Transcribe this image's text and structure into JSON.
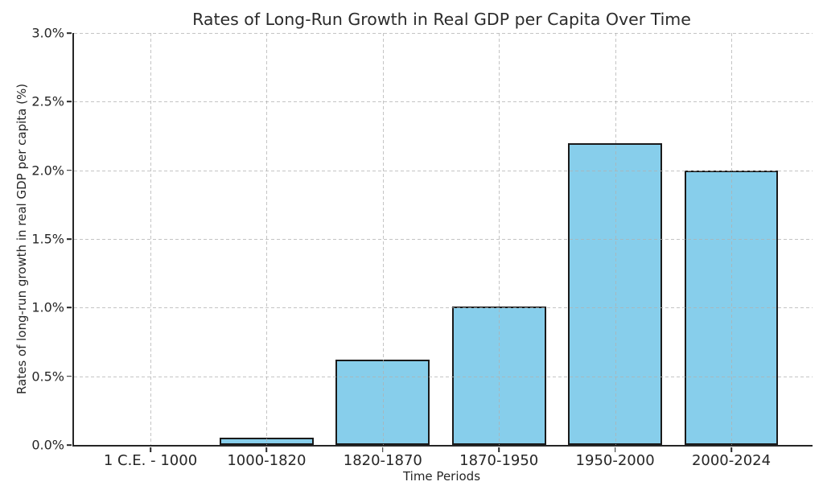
{
  "chart_data": {
    "type": "bar",
    "title": "Rates of Long-Run Growth in Real GDP per Capita Over Time",
    "xlabel": "Time Periods",
    "ylabel": "Rates of long-run growth in real GDP per capita (%)",
    "categories": [
      "1 C.E. - 1000",
      "1000-1820",
      "1820-1870",
      "1870-1950",
      "1950-2000",
      "2000-2024"
    ],
    "values": [
      0.0,
      0.05,
      0.62,
      1.01,
      2.2,
      2.0
    ],
    "ylim": [
      0.0,
      3.0
    ],
    "ytick_step": 0.5,
    "ytick_labels": [
      "0.0%",
      "0.5%",
      "1.0%",
      "1.5%",
      "2.0%",
      "2.5%",
      "3.0%"
    ],
    "legend": "none",
    "grid": "dashed gridlines on both axes, drawn above bars",
    "colors": {
      "bar_fill": "#87CEEB",
      "bar_edge": "#1a1a1a",
      "axis_spine": "#262626",
      "grid_line": "#b0b0b0",
      "text": "#262626",
      "background": "#ffffff"
    }
  }
}
